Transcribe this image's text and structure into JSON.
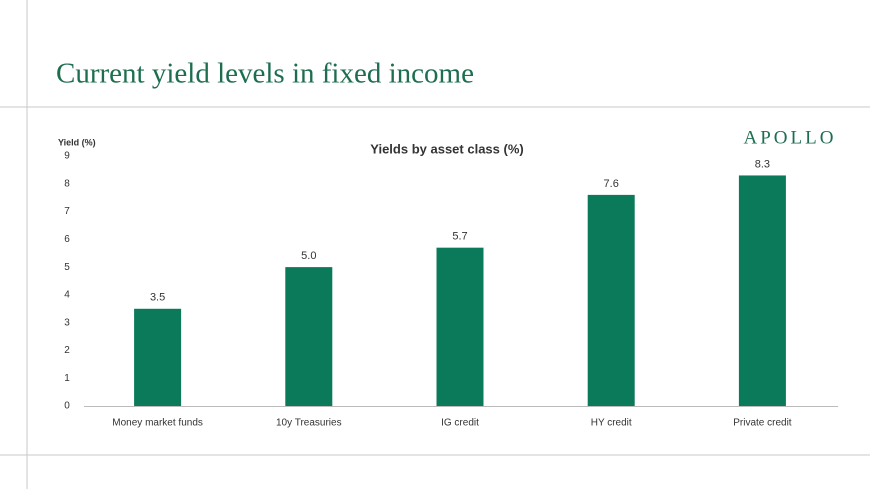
{
  "slide": {
    "title": "Current yield levels in fixed income",
    "logo": "APOLLO"
  },
  "chart_data": {
    "type": "bar",
    "title": "Yields by asset class (%)",
    "y_label": "Yield (%)",
    "categories": [
      "Money market funds",
      "10y Treasuries",
      "IG credit",
      "HY credit",
      "Private credit"
    ],
    "values": [
      3.5,
      5.0,
      5.7,
      7.6,
      8.3
    ],
    "value_labels": [
      "3.5",
      "5.0",
      "5.7",
      "7.6",
      "8.3"
    ],
    "color": "#0b7a5a",
    "ylim": [
      0,
      9
    ],
    "yticks": [
      0,
      1,
      2,
      3,
      4,
      5,
      6,
      7,
      8,
      9
    ],
    "grid": false
  }
}
